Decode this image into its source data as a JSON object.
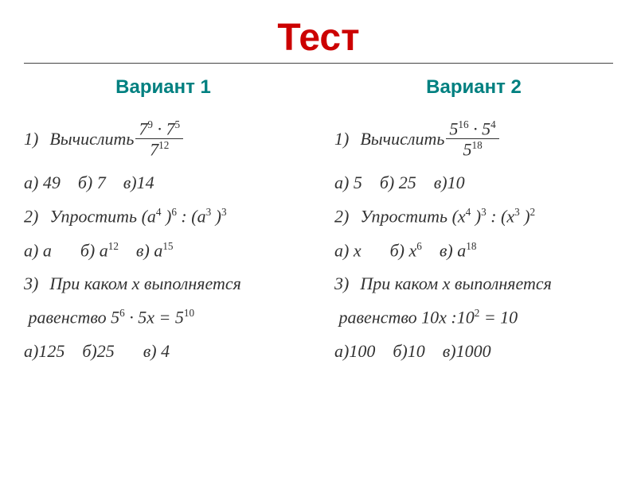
{
  "title": "Тест",
  "colors": {
    "title": "#cc0000",
    "variant": "#008080",
    "body": "#323232",
    "rule": "#444444",
    "background": "#ffffff"
  },
  "typography": {
    "title_font": "Verdana",
    "title_size_pt": 36,
    "variant_font": "Verdana",
    "variant_size_pt": 18,
    "body_font": "Times New Roman Italic",
    "body_size_pt": 16
  },
  "variants": [
    {
      "heading": "Вариант 1",
      "q1_prefix": "1) Вычислить",
      "q1_frac_num": "7⁹ · 7⁵",
      "q1_frac_den": "7¹²",
      "q1_choices": "а) 49   б) 7   в)14",
      "q2": "2) Упростить (a⁴ )⁶ : (a³ )³",
      "q2_choices": "а) a     б) a¹²   в) a¹⁵",
      "q3_line1": "3) При каком x выполняется",
      "q3_line2": " равенство 5⁶ · 5x = 5¹⁰",
      "q3_choices": "а)125   б)25    в) 4"
    },
    {
      "heading": "Вариант 2",
      "q1_prefix": "1) Вычислить",
      "q1_frac_num": "5¹⁶ · 5⁴",
      "q1_frac_den": "5¹⁸",
      "q1_choices": "а) 5   б) 25   в)10",
      "q2": "2) Упростить (x⁴ )³ : (x³ )²",
      "q2_choices": "а) x     б) x⁶   в) a¹⁸",
      "q3_line1": "3) При каком x выполняется",
      "q3_line2": " равенство 10x :10² = 10",
      "q3_choices": "а)100   б)10   в)1000"
    }
  ]
}
